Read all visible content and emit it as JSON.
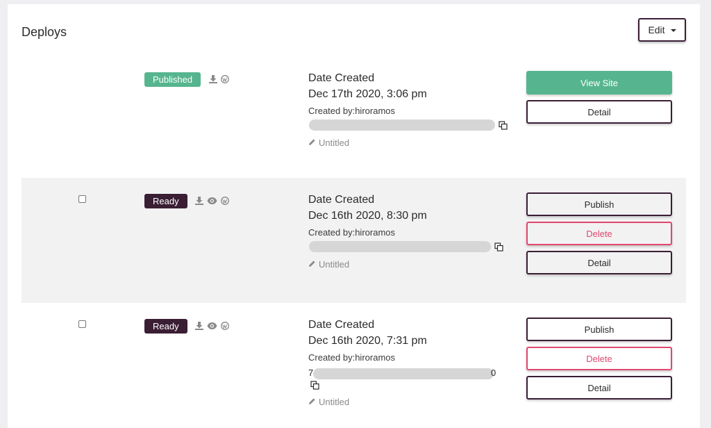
{
  "header": {
    "title": "Deploys",
    "edit_label": "Edit"
  },
  "colors": {
    "published": "#56b58f",
    "ready": "#3a1e34",
    "danger": "#e0476c",
    "row_alt": "#f2f2f3"
  },
  "icons": [
    "download-icon",
    "eye-icon",
    "wordpress-icon",
    "copy-icon",
    "pencil-icon"
  ],
  "deploys": [
    {
      "status": "Published",
      "date_label": "Date Created",
      "date": "Dec 17th 2020, 3:06 pm",
      "created_by": "Created by:hiroramos",
      "title": "Untitled",
      "actions": {
        "view_site": "View Site",
        "detail": "Detail"
      }
    },
    {
      "status": "Ready",
      "date_label": "Date Created",
      "date": "Dec 16th 2020, 8:30 pm",
      "created_by": "Created by:hiroramos",
      "title": "Untitled",
      "actions": {
        "publish": "Publish",
        "delete": "Delete",
        "detail": "Detail"
      }
    },
    {
      "status": "Ready",
      "date_label": "Date Created",
      "date": "Dec 16th 2020, 7:31 pm",
      "created_by": "Created by:hiroramos",
      "url_prefix": "7",
      "url_suffix": "0",
      "title": "Untitled",
      "actions": {
        "publish": "Publish",
        "delete": "Delete",
        "detail": "Detail"
      }
    }
  ]
}
